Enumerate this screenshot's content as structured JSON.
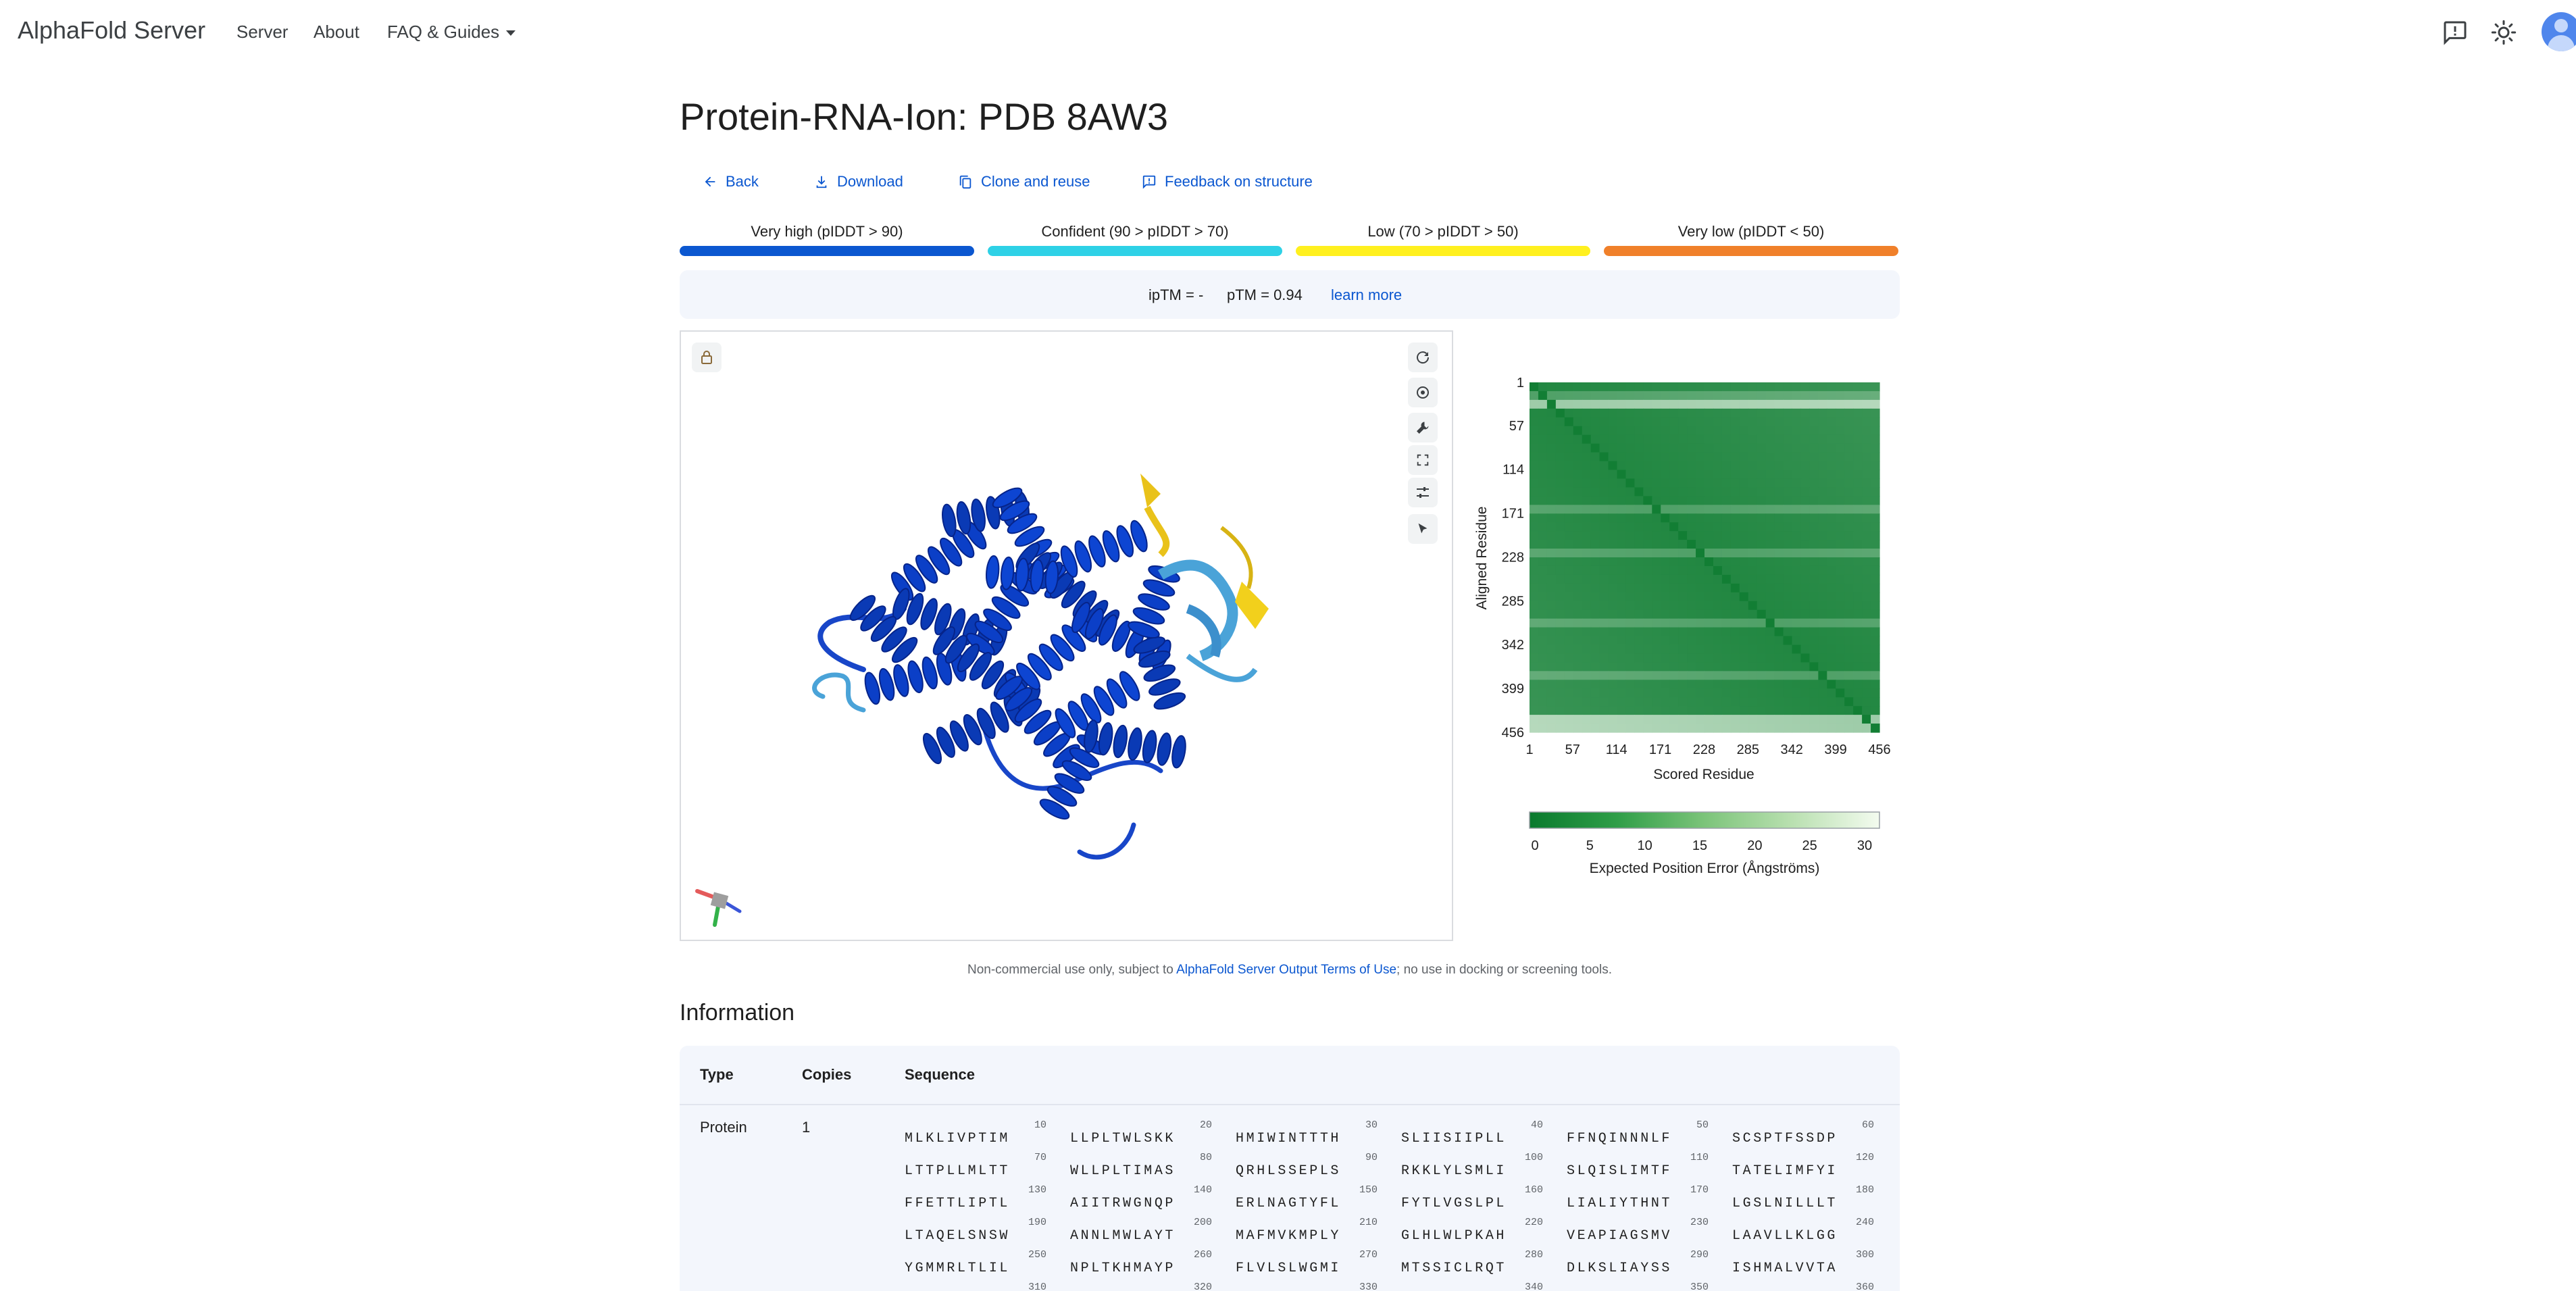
{
  "nav": {
    "brand": "AlphaFold Server",
    "server": "Server",
    "about": "About",
    "faq": "FAQ & Guides"
  },
  "page": {
    "title": "Protein-RNA-Ion: PDB 8AW3"
  },
  "actions": {
    "back": "Back",
    "download": "Download",
    "clone": "Clone and reuse",
    "feedback": "Feedback on structure"
  },
  "plddt_legend": [
    {
      "label": "Very high (pIDDT > 90)",
      "color": "#0b57d0"
    },
    {
      "label": "Confident (90 > pIDDT > 70)",
      "color": "#2ed1e6"
    },
    {
      "label": "Low (70 > pIDDT > 50)",
      "color": "#fff01f"
    },
    {
      "label": "Very low (pIDDT < 50)",
      "color": "#f0802a"
    }
  ],
  "scores": {
    "iptm": "ipTM = -",
    "ptm": "pTM = 0.94",
    "learn_more": "learn more"
  },
  "pae": {
    "y_label": "Aligned Residue",
    "x_label": "Scored Residue",
    "ticks": [
      "1",
      "57",
      "114",
      "171",
      "228",
      "285",
      "342",
      "399",
      "456"
    ],
    "colorbar_label": "Expected Position Error (Ångströms)",
    "colorbar_ticks": [
      "0",
      "5",
      "10",
      "15",
      "20",
      "25",
      "30"
    ],
    "colorbar_range": [
      0,
      30
    ],
    "color_low": "#0a7a2e",
    "color_high": "#f3fbef"
  },
  "footer": {
    "disclaimer_pre": "Non-commercial use only, subject to ",
    "disclaimer_link": "AlphaFold Server Output Terms of Use",
    "disclaimer_post": "; no use in docking or screening tools."
  },
  "information": {
    "title": "Information",
    "headers": {
      "type": "Type",
      "copies": "Copies",
      "sequence": "Sequence"
    },
    "row": {
      "type": "Protein",
      "copies": "1",
      "sequence_rows": [
        {
          "numbers": [
            "10",
            "20",
            "30",
            "40",
            "50",
            "60"
          ],
          "chunks": [
            "MLKLIVPTIM",
            "LLPLTWLSKK",
            "HMIWINTTTH",
            "SLIISIIPLL",
            "FFNQINNNLF",
            "SCSPTFSSDP"
          ]
        },
        {
          "numbers": [
            "70",
            "80",
            "90",
            "100",
            "110",
            "120"
          ],
          "chunks": [
            "LTTPLLMLTT",
            "WLLPLTIMAS",
            "QRHLSSEPLS",
            "RKKLYLSMLI",
            "SLQISLIMTF",
            "TATELIMFYI"
          ]
        },
        {
          "numbers": [
            "130",
            "140",
            "150",
            "160",
            "170",
            "180"
          ],
          "chunks": [
            "FFETTLIPTL",
            "AIITRWGNQP",
            "ERLNAGTYFL",
            "FYTLVGSLPL",
            "LIALIYTHNT",
            "LGSLNILLLT"
          ]
        },
        {
          "numbers": [
            "190",
            "200",
            "210",
            "220",
            "230",
            "240"
          ],
          "chunks": [
            "LTAQELSNSW",
            "ANNLMWLAYT",
            "MAFMVKMPLY",
            "GLHLWLPKAH",
            "VEAPIAGSMV",
            "LAAVLLKLGG"
          ]
        },
        {
          "numbers": [
            "250",
            "260",
            "270",
            "280",
            "290",
            "300"
          ],
          "chunks": [
            "YGMMRLTLIL",
            "NPLTKHMAYP",
            "FLVLSLWGMI",
            "MTSSICLRQT",
            "DLKSLIAYSS",
            "ISHMALVVTA"
          ]
        },
        {
          "numbers": [
            "310",
            "320",
            "330",
            "340",
            "350",
            "360"
          ],
          "chunks": [
            "",
            "",
            "",
            "",
            "",
            ""
          ]
        }
      ]
    }
  }
}
